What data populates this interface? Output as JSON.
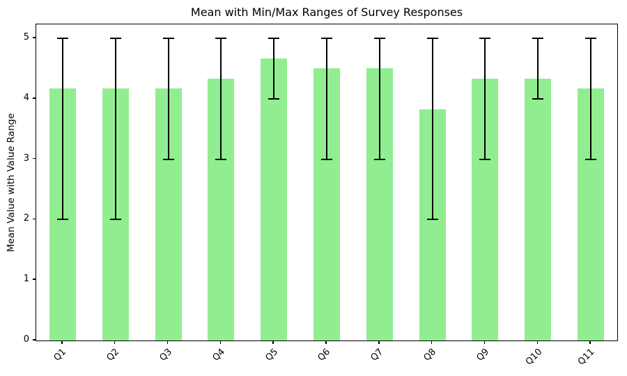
{
  "chart_data": {
    "type": "bar",
    "title": "Mean with Min/Max Ranges of Survey Responses",
    "ylabel": "Mean Value with Value Range",
    "categories": [
      "Q1",
      "Q2",
      "Q3",
      "Q4",
      "Q5",
      "Q6",
      "Q7",
      "Q8",
      "Q9",
      "Q10",
      "Q11"
    ],
    "series": [
      {
        "name": "Mean",
        "values": [
          4.17,
          4.17,
          4.17,
          4.33,
          4.67,
          4.5,
          4.5,
          3.83,
          4.33,
          4.33,
          4.17
        ]
      }
    ],
    "error_min": [
      2,
      2,
      3,
      3,
      4,
      3,
      3,
      2,
      3,
      4,
      3
    ],
    "error_max": [
      5,
      5,
      5,
      5,
      5,
      5,
      5,
      5,
      5,
      5,
      5
    ],
    "yticks": [
      "0",
      "1",
      "2",
      "3",
      "4",
      "5"
    ],
    "ylim": [
      0,
      5.23
    ],
    "xtick_rotation_deg": 45,
    "grid": "off",
    "legend": "none",
    "bar_color": "#90EE90",
    "error_color": "#000000",
    "axis_color": "#000000",
    "background_color": "#FFFFFF"
  }
}
